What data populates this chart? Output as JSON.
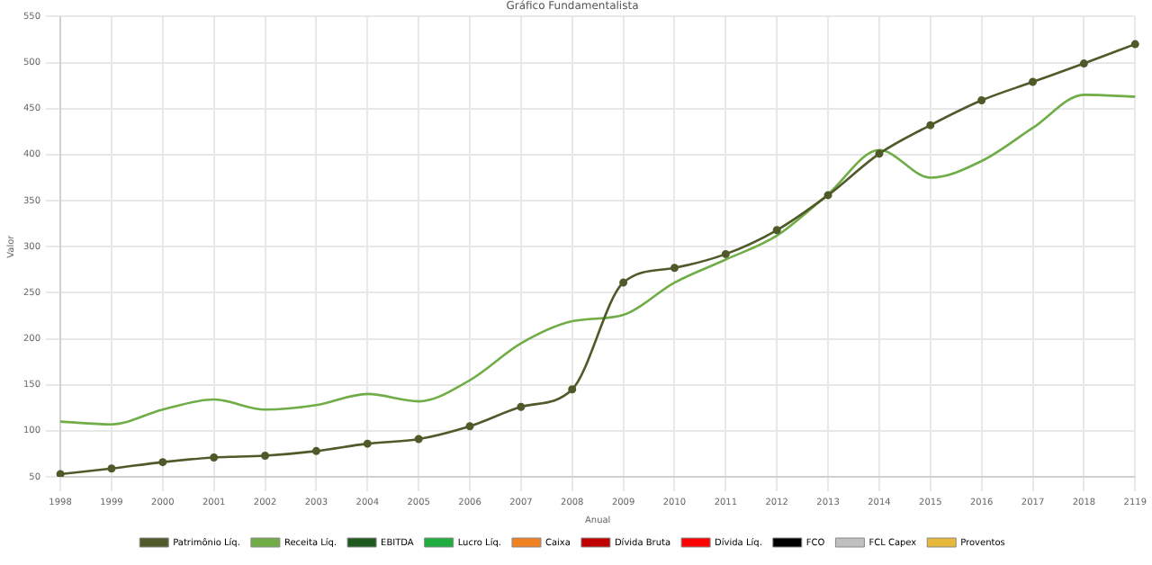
{
  "chart_data": {
    "type": "line",
    "title": "Gráfico Fundamentalista",
    "xlabel": "Anual",
    "ylabel": "Valor",
    "categories": [
      "1998",
      "1999",
      "2000",
      "2001",
      "2002",
      "2003",
      "2004",
      "2005",
      "2006",
      "2007",
      "2008",
      "2009",
      "2010",
      "2011",
      "2012",
      "2013",
      "2014",
      "2015",
      "2016",
      "2017",
      "2018",
      "2119"
    ],
    "series": [
      {
        "name": "Patrimônio Líq.",
        "color": "#4f5a2a",
        "marker": "circle",
        "values": [
          53,
          59,
          66,
          71,
          73,
          78,
          86,
          91,
          105,
          126,
          145,
          261,
          277,
          292,
          318,
          356,
          401,
          432,
          459,
          479,
          499,
          520
        ]
      },
      {
        "name": "Receita Líq.",
        "color": "#70ad47",
        "marker": "none",
        "values": [
          110,
          107,
          123,
          134,
          123,
          128,
          140,
          132,
          155,
          195,
          219,
          226,
          261,
          286,
          312,
          357,
          405,
          375,
          393,
          429,
          465,
          463
        ]
      },
      {
        "name": "EBITDA",
        "color": "#1e5a1e",
        "values": [
          null,
          null,
          null,
          null,
          null,
          null,
          null,
          null,
          null,
          null,
          null,
          null,
          null,
          null,
          null,
          null,
          null,
          null,
          null,
          null,
          null,
          null
        ]
      },
      {
        "name": "Lucro Líq.",
        "color": "#1fad3f",
        "values": [
          null,
          null,
          null,
          null,
          null,
          null,
          null,
          null,
          null,
          null,
          null,
          null,
          null,
          null,
          null,
          null,
          null,
          null,
          null,
          null,
          null,
          null
        ]
      },
      {
        "name": "Caixa",
        "color": "#f08020",
        "values": [
          null,
          null,
          null,
          null,
          null,
          null,
          null,
          null,
          null,
          null,
          null,
          null,
          null,
          null,
          null,
          null,
          null,
          null,
          null,
          null,
          null,
          null
        ]
      },
      {
        "name": "Dívida Bruta",
        "color": "#c00000",
        "values": [
          null,
          null,
          null,
          null,
          null,
          null,
          null,
          null,
          null,
          null,
          null,
          null,
          null,
          null,
          null,
          null,
          null,
          null,
          null,
          null,
          null,
          null
        ]
      },
      {
        "name": "Dívida Líq.",
        "color": "#ff0000",
        "values": [
          null,
          null,
          null,
          null,
          null,
          null,
          null,
          null,
          null,
          null,
          null,
          null,
          null,
          null,
          null,
          null,
          null,
          null,
          null,
          null,
          null,
          null
        ]
      },
      {
        "name": "FCO",
        "color": "#000000",
        "values": [
          null,
          null,
          null,
          null,
          null,
          null,
          null,
          null,
          null,
          null,
          null,
          null,
          null,
          null,
          null,
          null,
          null,
          null,
          null,
          null,
          null,
          null
        ]
      },
      {
        "name": "FCL Capex",
        "color": "#c0c0c0",
        "values": [
          null,
          null,
          null,
          null,
          null,
          null,
          null,
          null,
          null,
          null,
          null,
          null,
          null,
          null,
          null,
          null,
          null,
          null,
          null,
          null,
          null,
          null
        ]
      },
      {
        "name": "Proventos",
        "color": "#e8b83a",
        "values": [
          null,
          null,
          null,
          null,
          null,
          null,
          null,
          null,
          null,
          null,
          null,
          null,
          null,
          null,
          null,
          null,
          null,
          null,
          null,
          null,
          null,
          null
        ]
      }
    ],
    "ylim": [
      50,
      550
    ],
    "yticks": [
      50,
      100,
      150,
      200,
      250,
      300,
      350,
      400,
      450,
      500,
      550
    ],
    "grid": true,
    "legend": "bottom",
    "line_style": "solid"
  }
}
